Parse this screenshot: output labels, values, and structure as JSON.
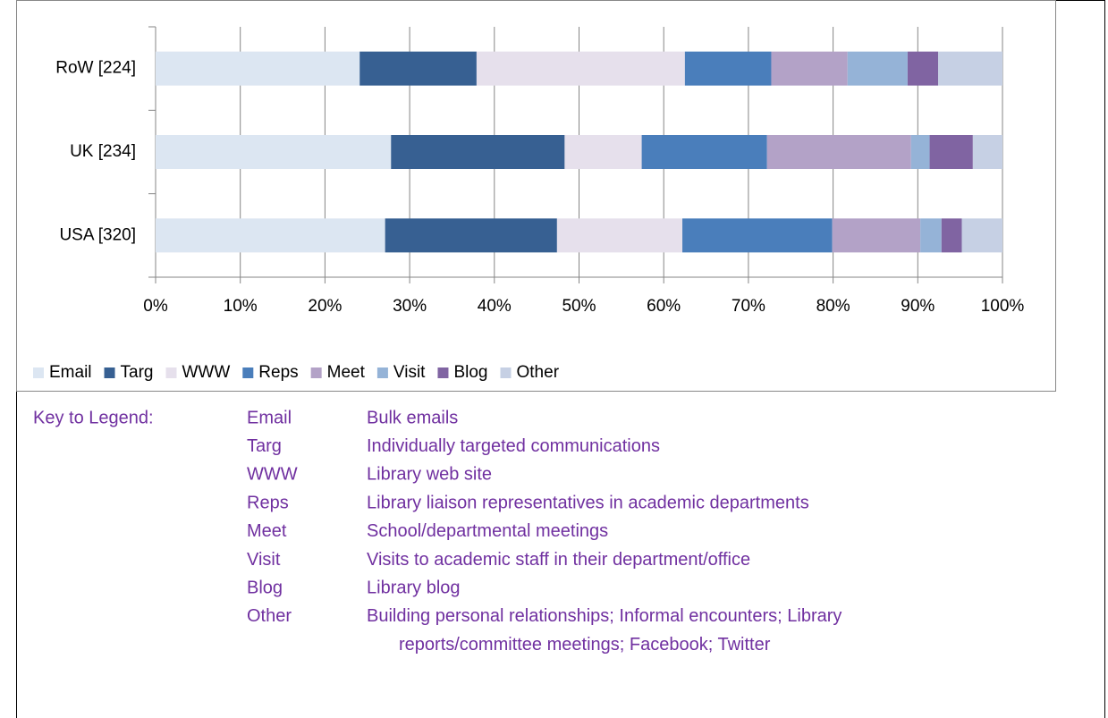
{
  "chart_data": {
    "type": "stacked_hbar",
    "categories": [
      "RoW [224]",
      "UK [234]",
      "USA [320]"
    ],
    "series": [
      {
        "name": "Email",
        "color": "#dce6f2",
        "values": [
          24.1,
          27.8,
          27.1
        ]
      },
      {
        "name": "Targ",
        "color": "#376092",
        "values": [
          13.8,
          20.5,
          20.3
        ]
      },
      {
        "name": "WWW",
        "color": "#e6e0ec",
        "values": [
          24.6,
          9.1,
          14.8
        ]
      },
      {
        "name": "Reps",
        "color": "#4a7ebb",
        "values": [
          10.2,
          14.8,
          17.7
        ]
      },
      {
        "name": "Meet",
        "color": "#b3a2c7",
        "values": [
          9.0,
          17.0,
          10.4
        ]
      },
      {
        "name": "Visit",
        "color": "#95b3d7",
        "values": [
          7.1,
          2.2,
          2.5
        ]
      },
      {
        "name": "Blog",
        "color": "#8064a2",
        "values": [
          3.6,
          5.1,
          2.4
        ]
      },
      {
        "name": "Other",
        "color": "#c6d0e4",
        "values": [
          7.6,
          3.5,
          4.8
        ]
      }
    ],
    "xlim": [
      0,
      100
    ],
    "xticks": [
      {
        "value": 0,
        "label": "0%"
      },
      {
        "value": 10,
        "label": "10%"
      },
      {
        "value": 20,
        "label": "20%"
      },
      {
        "value": 30,
        "label": "30%"
      },
      {
        "value": 40,
        "label": "40%"
      },
      {
        "value": 50,
        "label": "50%"
      },
      {
        "value": 60,
        "label": "60%"
      },
      {
        "value": 70,
        "label": "70%"
      },
      {
        "value": 80,
        "label": "80%"
      },
      {
        "value": 90,
        "label": "90%"
      },
      {
        "value": 100,
        "label": "100%"
      }
    ],
    "grid": true,
    "legend": "bottom"
  },
  "key": {
    "title": "Key to Legend:",
    "items": [
      {
        "code": "Email",
        "lines": [
          "Bulk emails"
        ]
      },
      {
        "code": "Targ",
        "lines": [
          "Individually targeted communications"
        ]
      },
      {
        "code": "WWW",
        "lines": [
          "Library web site"
        ]
      },
      {
        "code": "Reps",
        "lines": [
          "Library liaison representatives in academic departments"
        ]
      },
      {
        "code": "Meet",
        "lines": [
          "School/departmental meetings"
        ]
      },
      {
        "code": "Visit",
        "lines": [
          "Visits to academic staff in their department/office"
        ]
      },
      {
        "code": "Blog",
        "lines": [
          "Library blog"
        ]
      },
      {
        "code": "Other",
        "lines": [
          "Building personal relationships; Informal encounters; Library",
          "reports/committee meetings; Facebook; Twitter"
        ]
      }
    ]
  }
}
